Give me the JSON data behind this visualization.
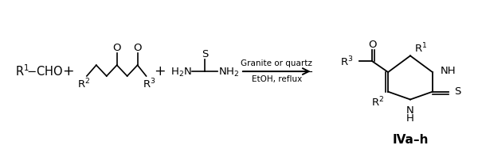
{
  "bg_color": "#ffffff",
  "fig_width": 6.0,
  "fig_height": 1.88,
  "dpi": 100,
  "font_family": "DejaVu Sans",
  "arrow_label_top": "Granite or quartz",
  "arrow_label_bot": "EtOH, reflux",
  "compound_label": "IVa–h",
  "line_color": "#000000"
}
